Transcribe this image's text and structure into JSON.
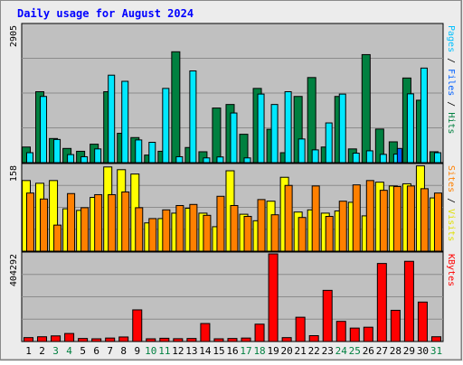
{
  "chart_data": {
    "type": "bar",
    "title": "Daily usage for August 2024",
    "categories": [
      "1",
      "2",
      "3",
      "4",
      "5",
      "6",
      "7",
      "8",
      "9",
      "10",
      "11",
      "12",
      "13",
      "14",
      "15",
      "16",
      "17",
      "18",
      "19",
      "20",
      "21",
      "22",
      "23",
      "24",
      "25",
      "26",
      "27",
      "28",
      "29",
      "30",
      "31"
    ],
    "weekend_days": [
      "3",
      "4",
      "10",
      "11",
      "17",
      "18",
      "24",
      "25",
      "31"
    ],
    "colors": {
      "background": "#ececec",
      "panel": "#c0c0c0",
      "title": "#0000ff",
      "hits": "#008040",
      "files": "#00e8ff",
      "pages": "#00c0ff",
      "visits": "#ffff00",
      "sites": "#ff8000",
      "kbytes": "#ff0000",
      "weekend_label": "#008040",
      "weekday_label": "#000000"
    },
    "panels": [
      {
        "label_parts": [
          {
            "text": "Pages",
            "color": "#00c0ff"
          },
          {
            "text": " / ",
            "color": "#000000"
          },
          {
            "text": "Files",
            "color": "#0060ff"
          },
          {
            "text": " / ",
            "color": "#000000"
          },
          {
            "text": "Hits",
            "color": "#008040"
          }
        ],
        "max_label": "2905",
        "ylim": [
          0,
          2905
        ],
        "series": [
          {
            "name": "Hits",
            "color": "#008040",
            "values": [
              330,
              1500,
              510,
              300,
              240,
              390,
              1500,
              620,
              530,
              160,
              240,
              2345,
              320,
              230,
              1155,
              1230,
              600,
              1570,
              705,
              210,
              1400,
              1800,
              330,
              1400,
              290,
              2285,
              710,
              440,
              1790,
              1320,
              230
            ]
          },
          {
            "name": "Files",
            "color": "#00e8ff",
            "values": [
              210,
              1400,
              490,
              170,
              125,
              290,
              1850,
              1720,
              480,
              430,
              1570,
              125,
              1940,
              100,
              120,
              1050,
              100,
              1450,
              1230,
              1500,
              500,
              270,
              840,
              1450,
              200,
              250,
              175,
              180,
              1455,
              2000,
              210
            ]
          },
          {
            "name": "Pages",
            "color": "#0060ff",
            "values": [
              0,
              0,
              0,
              0,
              0,
              0,
              0,
              0,
              0,
              0,
              0,
              0,
              0,
              0,
              0,
              0,
              0,
              0,
              0,
              0,
              0,
              0,
              0,
              0,
              0,
              0,
              0,
              300,
              0,
              0,
              0
            ]
          }
        ]
      },
      {
        "label_parts": [
          {
            "text": "Sites",
            "color": "#ff8000"
          },
          {
            "text": " / ",
            "color": "#000000"
          },
          {
            "text": "Visits",
            "color": "#e0e000"
          }
        ],
        "max_label": "158",
        "ylim": [
          0,
          158
        ],
        "series": [
          {
            "name": "Visits",
            "color": "#ffff00",
            "values": [
              130,
              125,
              130,
              78,
              75,
              99,
              155,
              150,
              142,
              52,
              60,
              70,
              79,
              70,
              45,
              148,
              68,
              56,
              92,
              136,
              72,
              76,
              70,
              74,
              90,
              65,
              127,
              120,
              124,
              157,
              98
            ]
          },
          {
            "name": "Sites",
            "color": "#ff8000",
            "values": [
              107,
              96,
              48,
              106,
              80,
              104,
              104,
              109,
              80,
              60,
              76,
              84,
              86,
              66,
              101,
              84,
              64,
              95,
              67,
              121,
              62,
              120,
              64,
              92,
              122,
              130,
              112,
              119,
              120,
              115,
              107
            ]
          }
        ]
      },
      {
        "label_parts": [
          {
            "text": "KBytes",
            "color": "#ff0000"
          }
        ],
        "max_label": "404292",
        "ylim": [
          0,
          404292
        ],
        "series": [
          {
            "name": "KBytes",
            "color": "#ff0000",
            "values": [
              18000,
              22000,
              26000,
              37000,
              14000,
              9000,
              16000,
              21000,
              146000,
              12000,
              15000,
              13000,
              14000,
              83000,
              12000,
              14000,
              16000,
              80000,
              404292,
              18000,
              112000,
              27000,
              236000,
              93000,
              62000,
              66000,
              360000,
              144000,
              370000,
              182000,
              22000
            ]
          }
        ]
      }
    ]
  }
}
